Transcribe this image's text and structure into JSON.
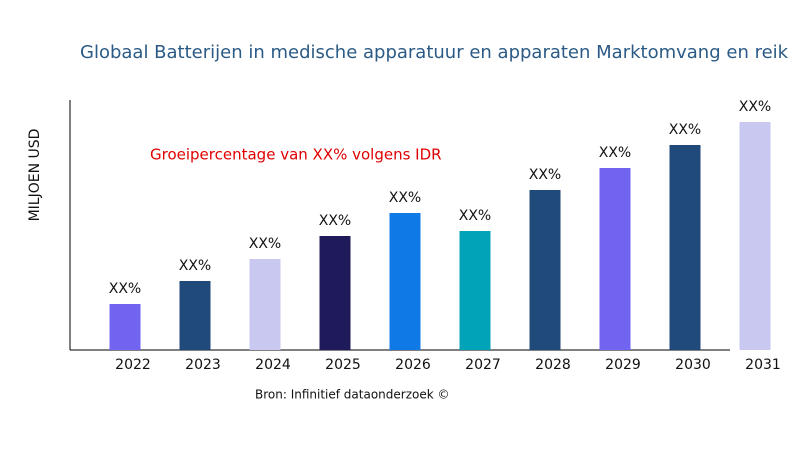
{
  "chart_data": {
    "type": "bar",
    "title": "Globaal Batterijen in medische apparatuur en apparaten Marktomvang en reik",
    "y_label": "MILJOEN USD",
    "annotation": "Groeipercentage van XX% volgens IDR",
    "source": "Bron: Infinitief dataonderzoek ©",
    "categories": [
      "2022",
      "2023",
      "2024",
      "2025",
      "2026",
      "2027",
      "2028",
      "2029",
      "2030",
      "2031"
    ],
    "values": [
      46,
      69,
      91,
      114,
      137,
      119,
      160,
      182,
      205,
      228
    ],
    "value_labels": [
      "XX%",
      "XX%",
      "XX%",
      "XX%",
      "XX%",
      "XX%",
      "XX%",
      "XX%",
      "XX%",
      "XX%"
    ],
    "colors": [
      "#7064f0",
      "#1f4a7a",
      "#c8c8f0",
      "#1f1a5a",
      "#0f7ae6",
      "#00a3b8",
      "#1f4a7a",
      "#7064f0",
      "#1f4a7a",
      "#c8c8f0"
    ],
    "ylim": [
      0,
      250
    ]
  }
}
